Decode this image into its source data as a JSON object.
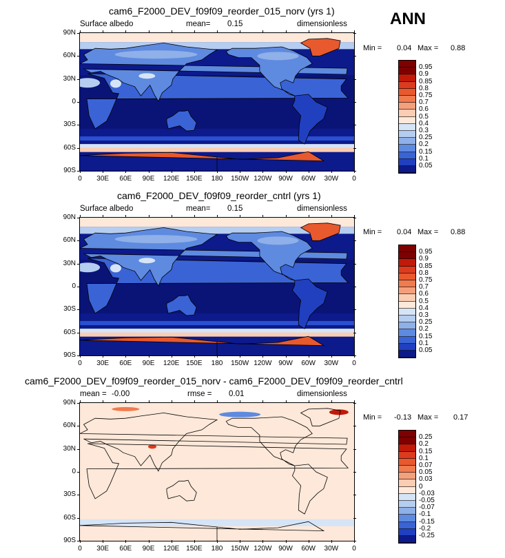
{
  "season": "ANN",
  "panels": [
    {
      "title": "cam6_F2000_DEV_f09f09_reorder_015_norv (yrs 1)",
      "left_label": "Surface albedo",
      "center_label": "mean=",
      "center_value": "0.15",
      "right_label": "dimensionless",
      "min_label": "Min =",
      "min_value": "0.04",
      "max_label": "Max =",
      "max_value": "0.88",
      "colorbar": [
        "0.95",
        "0.9",
        "0.85",
        "0.8",
        "0.75",
        "0.7",
        "0.6",
        "0.5",
        "0.4",
        "0.3",
        "0.25",
        "0.2",
        "0.15",
        "0.1",
        "0.05"
      ],
      "kind": "albedo"
    },
    {
      "title": "cam6_F2000_DEV_f09f09_reorder_cntrl (yrs 1)",
      "left_label": "Surface albedo",
      "center_label": "mean=",
      "center_value": "0.15",
      "right_label": "dimensionless",
      "min_label": "Min =",
      "min_value": "0.04",
      "max_label": "Max =",
      "max_value": "0.88",
      "colorbar": [
        "0.95",
        "0.9",
        "0.85",
        "0.8",
        "0.75",
        "0.7",
        "0.6",
        "0.5",
        "0.4",
        "0.3",
        "0.25",
        "0.2",
        "0.15",
        "0.1",
        "0.05"
      ],
      "kind": "albedo"
    },
    {
      "title": "cam6_F2000_DEV_f09f09_reorder_015_norv - cam6_F2000_DEV_f09f09_reorder_cntrl",
      "left_label": "mean =",
      "left_value": "-0.00",
      "center_label": "rmse =",
      "center_value": "0.01",
      "right_label": "dimensionless",
      "min_label": "Min =",
      "min_value": "-0.13",
      "max_label": "Max =",
      "max_value": "0.17",
      "colorbar": [
        "0.25",
        "0.2",
        "0.15",
        "0.1",
        "0.07",
        "0.05",
        "0.03",
        "0",
        "-0.03",
        "-0.05",
        "-0.07",
        "-0.1",
        "-0.15",
        "-0.2",
        "-0.25"
      ],
      "kind": "diff"
    }
  ],
  "lat_ticks": [
    "90N",
    "60N",
    "30N",
    "0",
    "30S",
    "60S",
    "90S"
  ],
  "lon_ticks": [
    "0",
    "30E",
    "60E",
    "90E",
    "120E",
    "150E",
    "180",
    "150W",
    "120W",
    "90W",
    "60W",
    "30W",
    "0"
  ],
  "colors": {
    "albedo": [
      "#7f0000",
      "#c11a09",
      "#dc3b1e",
      "#e8592e",
      "#f07b4f",
      "#f5a07c",
      "#fbcdb3",
      "#fde8d9",
      "#d6e4f7",
      "#b5cdf0",
      "#8fb0e8",
      "#5e8ae0",
      "#3a63d6",
      "#2040c0",
      "#0d1a8c"
    ],
    "diff": [
      "#7f0000",
      "#c11a09",
      "#dc3b1e",
      "#e8592e",
      "#f07b4f",
      "#f5a07c",
      "#fbcdb3",
      "#fde8d9",
      "#d6e4f7",
      "#b5cdf0",
      "#8fb0e8",
      "#5e8ae0",
      "#3a63d6",
      "#2040c0",
      "#0d1a8c"
    ]
  }
}
